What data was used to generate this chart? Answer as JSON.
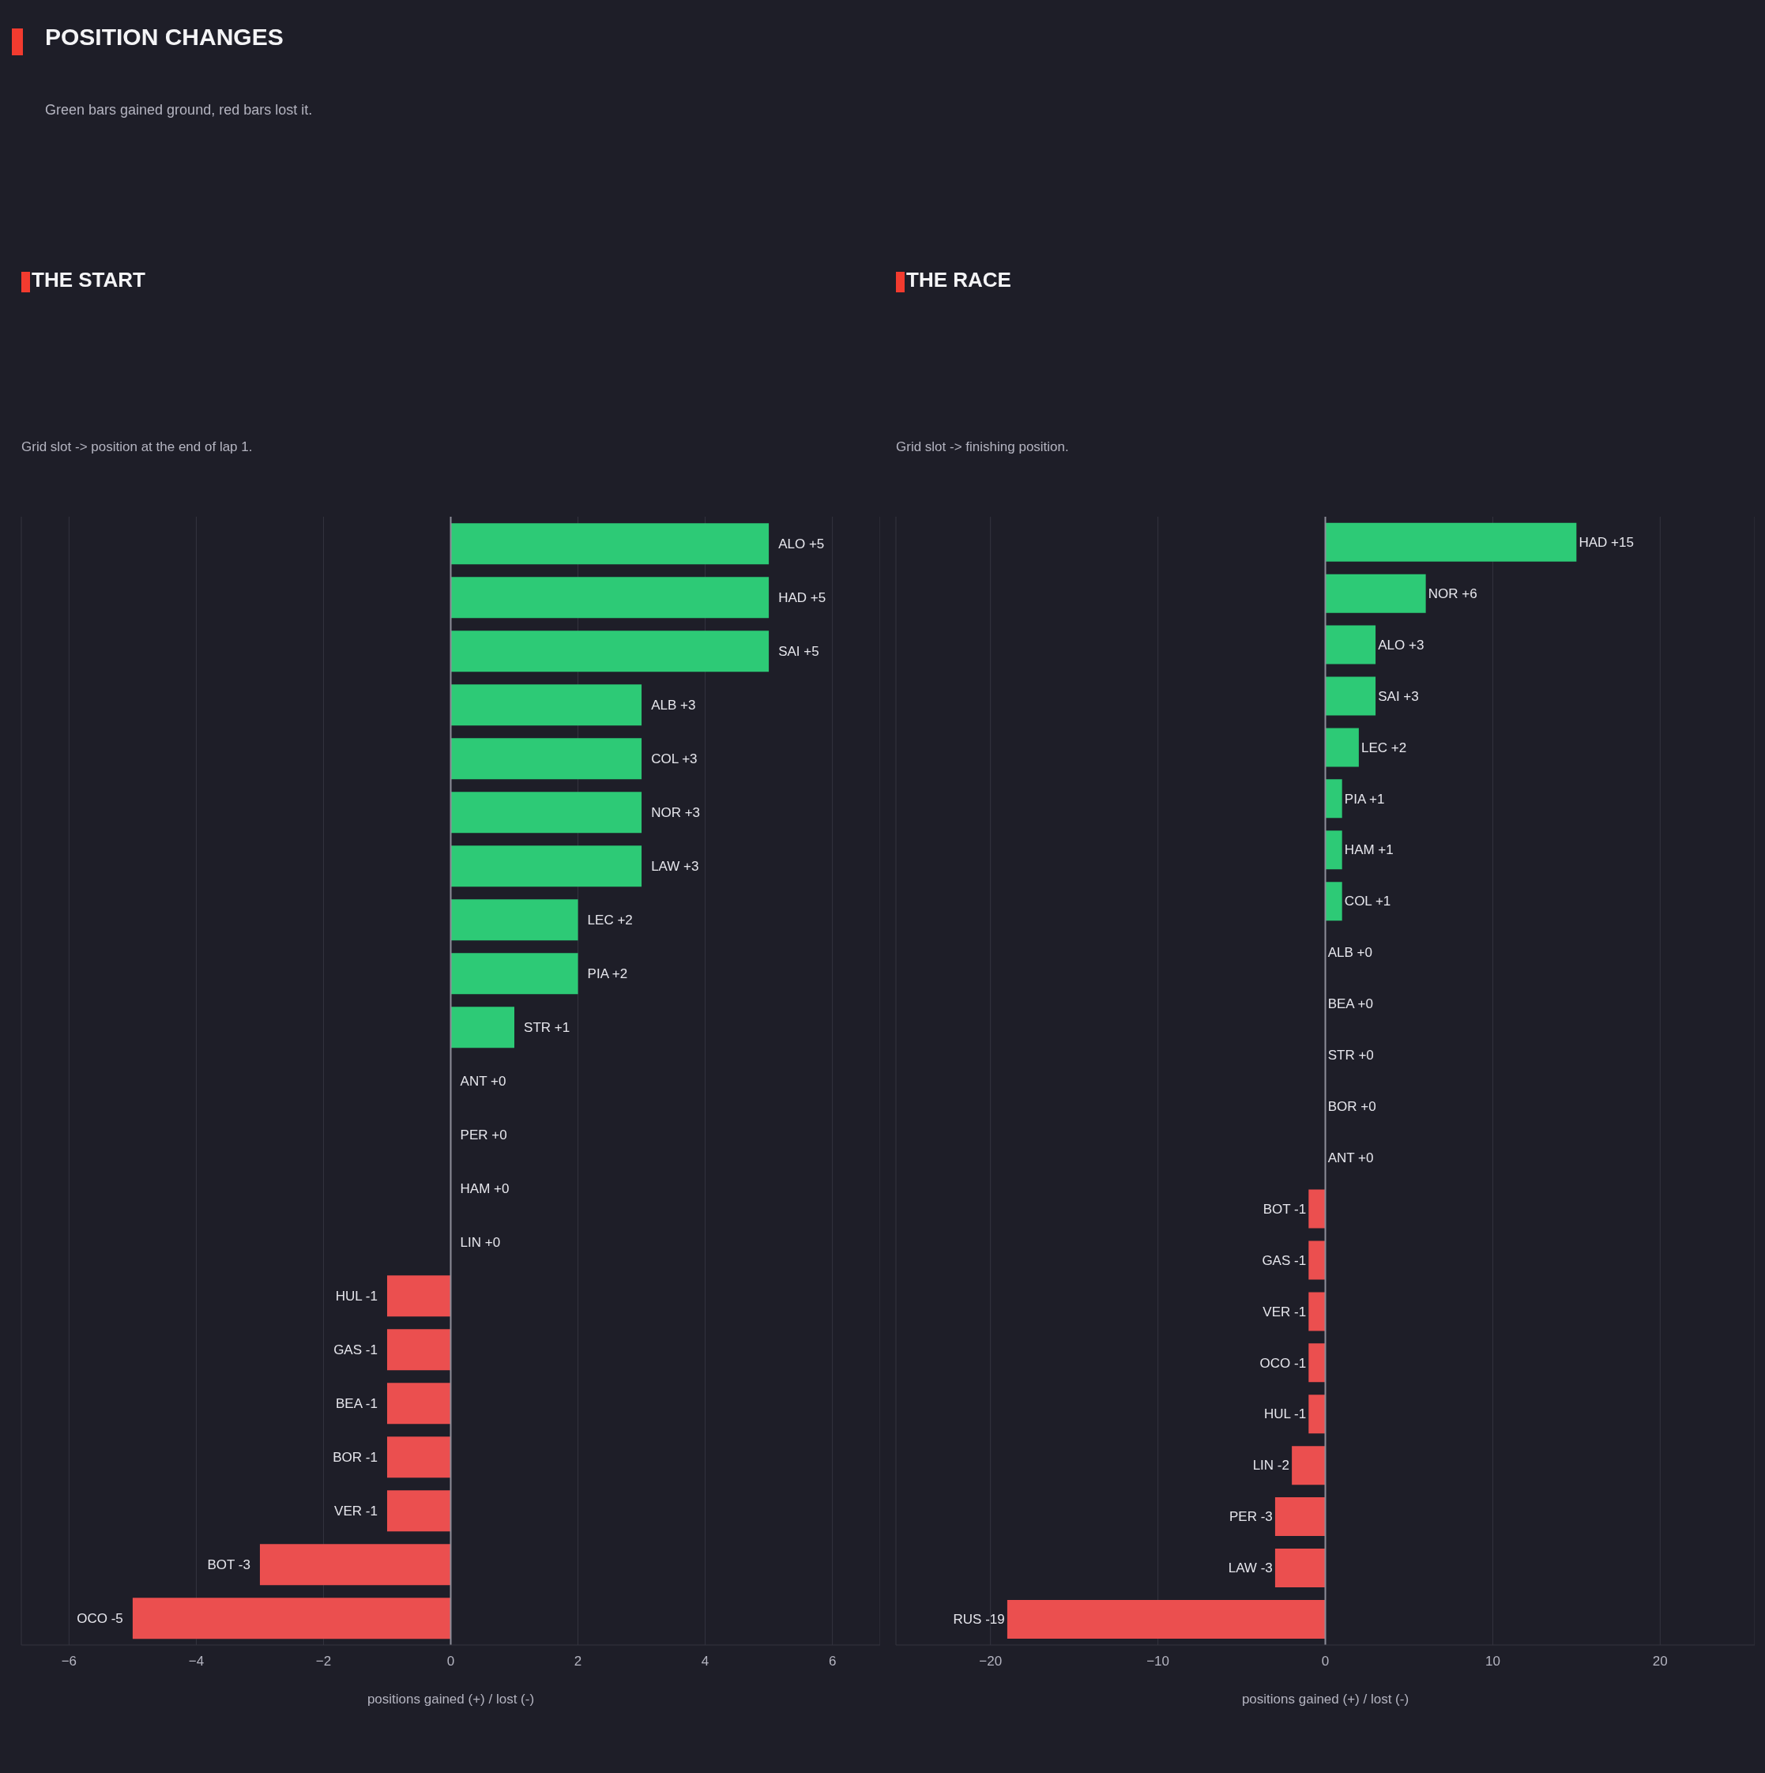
{
  "chart_data": [
    {
      "type": "bar",
      "orientation": "horizontal",
      "title": "THE START",
      "subtitle": "Grid slot -> position at the end of lap 1.",
      "xlabel": "positions gained (+) / lost (-)",
      "annotations": [
        "POSITION CHANGES",
        "Green bars gained ground, red bars lost it."
      ],
      "categories": [
        "ALO",
        "HAD",
        "SAI",
        "ALB",
        "COL",
        "NOR",
        "LAW",
        "LEC",
        "PIA",
        "STR",
        "ANT",
        "PER",
        "HAM",
        "LIN",
        "HUL",
        "GAS",
        "BEA",
        "BOR",
        "VER",
        "BOT",
        "OCO"
      ],
      "values": [
        5,
        5,
        5,
        3,
        3,
        3,
        3,
        2,
        2,
        1,
        0,
        0,
        0,
        0,
        -1,
        -1,
        -1,
        -1,
        -1,
        -3,
        -5
      ],
      "value_labels": [
        "+5",
        "+5",
        "+5",
        "+3",
        "+3",
        "+3",
        "+3",
        "+2",
        "+2",
        "+1",
        "+0",
        "+0",
        "+0",
        "+0",
        "-1",
        "-1",
        "-1",
        "-1",
        "-1",
        "-3",
        "-5"
      ],
      "colors": [
        "#2dca76",
        "#2dca76",
        "#2dca76",
        "#2dca76",
        "#2dca76",
        "#2dca76",
        "#2dca76",
        "#2dca76",
        "#2dca76",
        "#2dca76",
        "#2dca76",
        "#2dca76",
        "#2dca76",
        "#2dca76",
        "#eb4f4f",
        "#eb4f4f",
        "#eb4f4f",
        "#eb4f4f",
        "#eb4f4f",
        "#eb4f4f",
        "#eb4f4f"
      ],
      "xlim": [
        -6.75,
        6.75
      ],
      "xticks": [
        {
          "value": -6,
          "label": "−6"
        },
        {
          "value": -4,
          "label": "−4"
        },
        {
          "value": -2,
          "label": "−2"
        },
        0,
        2,
        4,
        6
      ],
      "grid": "x",
      "tick_labels": "x",
      "ref_lines": [
        {
          "axis": "x",
          "value": 0,
          "color": "#8e8e99"
        }
      ]
    },
    {
      "type": "bar",
      "orientation": "horizontal",
      "title": "THE RACE",
      "subtitle": "Grid slot -> finishing position.",
      "xlabel": "positions gained (+) / lost (-)",
      "categories": [
        "HAD",
        "NOR",
        "ALO",
        "SAI",
        "LEC",
        "PIA",
        "HAM",
        "COL",
        "ALB",
        "BEA",
        "STR",
        "BOR",
        "ANT",
        "BOT",
        "GAS",
        "VER",
        "OCO",
        "HUL",
        "LIN",
        "PER",
        "LAW",
        "RUS"
      ],
      "values": [
        15,
        6,
        3,
        3,
        2,
        1,
        1,
        1,
        0,
        0,
        0,
        0,
        0,
        -1,
        -1,
        -1,
        -1,
        -1,
        -2,
        -3,
        -3,
        -19
      ],
      "value_labels": [
        "+15",
        "+6",
        "+3",
        "+3",
        "+2",
        "+1",
        "+1",
        "+1",
        "+0",
        "+0",
        "+0",
        "+0",
        "+0",
        "-1",
        "-1",
        "-1",
        "-1",
        "-1",
        "-2",
        "-3",
        "-3",
        "-19"
      ],
      "colors": [
        "#2dca76",
        "#2dca76",
        "#2dca76",
        "#2dca76",
        "#2dca76",
        "#2dca76",
        "#2dca76",
        "#2dca76",
        "#2dca76",
        "#2dca76",
        "#2dca76",
        "#2dca76",
        "#2dca76",
        "#eb4f4f",
        "#eb4f4f",
        "#eb4f4f",
        "#eb4f4f",
        "#eb4f4f",
        "#eb4f4f",
        "#eb4f4f",
        "#eb4f4f",
        "#eb4f4f"
      ],
      "xlim": [
        -25.65,
        25.65
      ],
      "xticks": [
        {
          "value": -20,
          "label": "−20"
        },
        {
          "value": -10,
          "label": "−10"
        },
        0,
        10,
        20
      ],
      "grid": "x",
      "tick_labels": "x",
      "ref_lines": [
        {
          "axis": "x",
          "value": 0,
          "color": "#8e8e99"
        }
      ]
    }
  ]
}
